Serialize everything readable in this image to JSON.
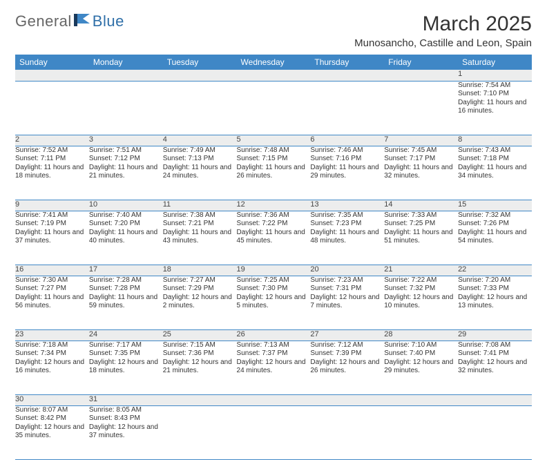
{
  "brand": {
    "part1": "General",
    "part2": "Blue"
  },
  "title": "March 2025",
  "location": "Munosancho, Castille and Leon, Spain",
  "colors": {
    "header_bg": "#3f87c6",
    "header_text": "#ffffff",
    "daynum_bg": "#eceded",
    "border": "#3f87c6",
    "body_text": "#333333"
  },
  "dayHeaders": [
    "Sunday",
    "Monday",
    "Tuesday",
    "Wednesday",
    "Thursday",
    "Friday",
    "Saturday"
  ],
  "weeks": [
    [
      null,
      null,
      null,
      null,
      null,
      null,
      {
        "n": "1",
        "sr": "Sunrise: 7:54 AM",
        "ss": "Sunset: 7:10 PM",
        "dl": "Daylight: 11 hours and 16 minutes."
      }
    ],
    [
      {
        "n": "2",
        "sr": "Sunrise: 7:52 AM",
        "ss": "Sunset: 7:11 PM",
        "dl": "Daylight: 11 hours and 18 minutes."
      },
      {
        "n": "3",
        "sr": "Sunrise: 7:51 AM",
        "ss": "Sunset: 7:12 PM",
        "dl": "Daylight: 11 hours and 21 minutes."
      },
      {
        "n": "4",
        "sr": "Sunrise: 7:49 AM",
        "ss": "Sunset: 7:13 PM",
        "dl": "Daylight: 11 hours and 24 minutes."
      },
      {
        "n": "5",
        "sr": "Sunrise: 7:48 AM",
        "ss": "Sunset: 7:15 PM",
        "dl": "Daylight: 11 hours and 26 minutes."
      },
      {
        "n": "6",
        "sr": "Sunrise: 7:46 AM",
        "ss": "Sunset: 7:16 PM",
        "dl": "Daylight: 11 hours and 29 minutes."
      },
      {
        "n": "7",
        "sr": "Sunrise: 7:45 AM",
        "ss": "Sunset: 7:17 PM",
        "dl": "Daylight: 11 hours and 32 minutes."
      },
      {
        "n": "8",
        "sr": "Sunrise: 7:43 AM",
        "ss": "Sunset: 7:18 PM",
        "dl": "Daylight: 11 hours and 34 minutes."
      }
    ],
    [
      {
        "n": "9",
        "sr": "Sunrise: 7:41 AM",
        "ss": "Sunset: 7:19 PM",
        "dl": "Daylight: 11 hours and 37 minutes."
      },
      {
        "n": "10",
        "sr": "Sunrise: 7:40 AM",
        "ss": "Sunset: 7:20 PM",
        "dl": "Daylight: 11 hours and 40 minutes."
      },
      {
        "n": "11",
        "sr": "Sunrise: 7:38 AM",
        "ss": "Sunset: 7:21 PM",
        "dl": "Daylight: 11 hours and 43 minutes."
      },
      {
        "n": "12",
        "sr": "Sunrise: 7:36 AM",
        "ss": "Sunset: 7:22 PM",
        "dl": "Daylight: 11 hours and 45 minutes."
      },
      {
        "n": "13",
        "sr": "Sunrise: 7:35 AM",
        "ss": "Sunset: 7:23 PM",
        "dl": "Daylight: 11 hours and 48 minutes."
      },
      {
        "n": "14",
        "sr": "Sunrise: 7:33 AM",
        "ss": "Sunset: 7:25 PM",
        "dl": "Daylight: 11 hours and 51 minutes."
      },
      {
        "n": "15",
        "sr": "Sunrise: 7:32 AM",
        "ss": "Sunset: 7:26 PM",
        "dl": "Daylight: 11 hours and 54 minutes."
      }
    ],
    [
      {
        "n": "16",
        "sr": "Sunrise: 7:30 AM",
        "ss": "Sunset: 7:27 PM",
        "dl": "Daylight: 11 hours and 56 minutes."
      },
      {
        "n": "17",
        "sr": "Sunrise: 7:28 AM",
        "ss": "Sunset: 7:28 PM",
        "dl": "Daylight: 11 hours and 59 minutes."
      },
      {
        "n": "18",
        "sr": "Sunrise: 7:27 AM",
        "ss": "Sunset: 7:29 PM",
        "dl": "Daylight: 12 hours and 2 minutes."
      },
      {
        "n": "19",
        "sr": "Sunrise: 7:25 AM",
        "ss": "Sunset: 7:30 PM",
        "dl": "Daylight: 12 hours and 5 minutes."
      },
      {
        "n": "20",
        "sr": "Sunrise: 7:23 AM",
        "ss": "Sunset: 7:31 PM",
        "dl": "Daylight: 12 hours and 7 minutes."
      },
      {
        "n": "21",
        "sr": "Sunrise: 7:22 AM",
        "ss": "Sunset: 7:32 PM",
        "dl": "Daylight: 12 hours and 10 minutes."
      },
      {
        "n": "22",
        "sr": "Sunrise: 7:20 AM",
        "ss": "Sunset: 7:33 PM",
        "dl": "Daylight: 12 hours and 13 minutes."
      }
    ],
    [
      {
        "n": "23",
        "sr": "Sunrise: 7:18 AM",
        "ss": "Sunset: 7:34 PM",
        "dl": "Daylight: 12 hours and 16 minutes."
      },
      {
        "n": "24",
        "sr": "Sunrise: 7:17 AM",
        "ss": "Sunset: 7:35 PM",
        "dl": "Daylight: 12 hours and 18 minutes."
      },
      {
        "n": "25",
        "sr": "Sunrise: 7:15 AM",
        "ss": "Sunset: 7:36 PM",
        "dl": "Daylight: 12 hours and 21 minutes."
      },
      {
        "n": "26",
        "sr": "Sunrise: 7:13 AM",
        "ss": "Sunset: 7:37 PM",
        "dl": "Daylight: 12 hours and 24 minutes."
      },
      {
        "n": "27",
        "sr": "Sunrise: 7:12 AM",
        "ss": "Sunset: 7:39 PM",
        "dl": "Daylight: 12 hours and 26 minutes."
      },
      {
        "n": "28",
        "sr": "Sunrise: 7:10 AM",
        "ss": "Sunset: 7:40 PM",
        "dl": "Daylight: 12 hours and 29 minutes."
      },
      {
        "n": "29",
        "sr": "Sunrise: 7:08 AM",
        "ss": "Sunset: 7:41 PM",
        "dl": "Daylight: 12 hours and 32 minutes."
      }
    ],
    [
      {
        "n": "30",
        "sr": "Sunrise: 8:07 AM",
        "ss": "Sunset: 8:42 PM",
        "dl": "Daylight: 12 hours and 35 minutes."
      },
      {
        "n": "31",
        "sr": "Sunrise: 8:05 AM",
        "ss": "Sunset: 8:43 PM",
        "dl": "Daylight: 12 hours and 37 minutes."
      },
      null,
      null,
      null,
      null,
      null
    ]
  ]
}
